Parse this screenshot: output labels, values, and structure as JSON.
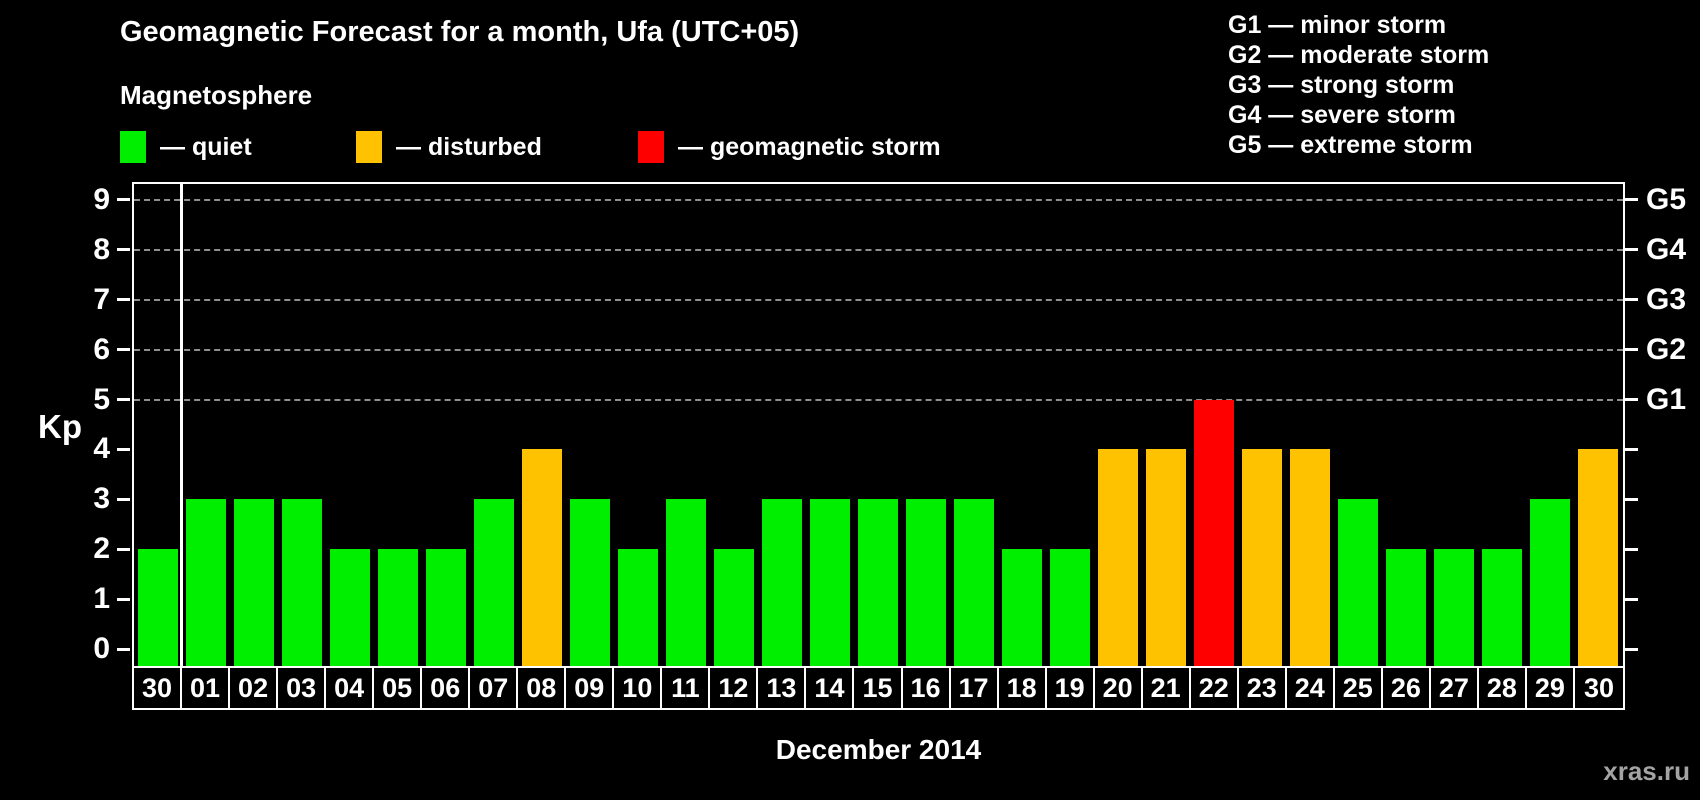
{
  "header": {
    "title": "Geomagnetic Forecast for a month, Ufa (UTC+05)",
    "subtitle": "Magnetosphere"
  },
  "legend": {
    "items": [
      {
        "key": "quiet",
        "label": "— quiet",
        "color": "#00ee00"
      },
      {
        "key": "disturbed",
        "label": "— disturbed",
        "color": "#ffc200"
      },
      {
        "key": "storm",
        "label": "— geomagnetic storm",
        "color": "#ff0000"
      }
    ]
  },
  "g_legend": {
    "items": [
      {
        "text": "G1 — minor storm"
      },
      {
        "text": "G2 — moderate storm"
      },
      {
        "text": "G3 — strong storm"
      },
      {
        "text": "G4 — severe storm"
      },
      {
        "text": "G5 — extreme storm"
      }
    ]
  },
  "chart_data": {
    "type": "bar",
    "title": "Geomagnetic Forecast for a month, Ufa (UTC+05)",
    "xlabel": "December 2014",
    "ylabel": "Kp",
    "ylim": [
      0,
      9
    ],
    "grid": "dashed horizontal lines at Kp 5,6,7,8,9",
    "legend_position": "top",
    "categories": [
      "30",
      "01",
      "02",
      "03",
      "04",
      "05",
      "06",
      "07",
      "08",
      "09",
      "10",
      "11",
      "12",
      "13",
      "14",
      "15",
      "16",
      "17",
      "18",
      "19",
      "20",
      "21",
      "22",
      "23",
      "24",
      "25",
      "26",
      "27",
      "28",
      "29",
      "30"
    ],
    "values": [
      2,
      3,
      3,
      3,
      2,
      2,
      2,
      3,
      4,
      3,
      2,
      3,
      2,
      3,
      3,
      3,
      3,
      3,
      2,
      2,
      4,
      4,
      5,
      4,
      4,
      3,
      2,
      2,
      2,
      3,
      4
    ],
    "states": [
      "quiet",
      "quiet",
      "quiet",
      "quiet",
      "quiet",
      "quiet",
      "quiet",
      "quiet",
      "disturbed",
      "quiet",
      "quiet",
      "quiet",
      "quiet",
      "quiet",
      "quiet",
      "quiet",
      "quiet",
      "quiet",
      "quiet",
      "quiet",
      "disturbed",
      "disturbed",
      "storm",
      "disturbed",
      "disturbed",
      "quiet",
      "quiet",
      "quiet",
      "quiet",
      "quiet",
      "disturbed"
    ],
    "state_colors": {
      "quiet": "#00ee00",
      "disturbed": "#ffc200",
      "storm": "#ff0000"
    },
    "yticks": [
      0,
      1,
      2,
      3,
      4,
      5,
      6,
      7,
      8,
      9
    ],
    "gridline_values": [
      5,
      6,
      7,
      8,
      9
    ],
    "right_axis": [
      {
        "value": 5,
        "label": "G1"
      },
      {
        "value": 6,
        "label": "G2"
      },
      {
        "value": 7,
        "label": "G3"
      },
      {
        "value": 8,
        "label": "G4"
      },
      {
        "value": 9,
        "label": "G5"
      }
    ],
    "separator_after_index": 0
  },
  "footer": {
    "watermark": "xras.ru"
  }
}
